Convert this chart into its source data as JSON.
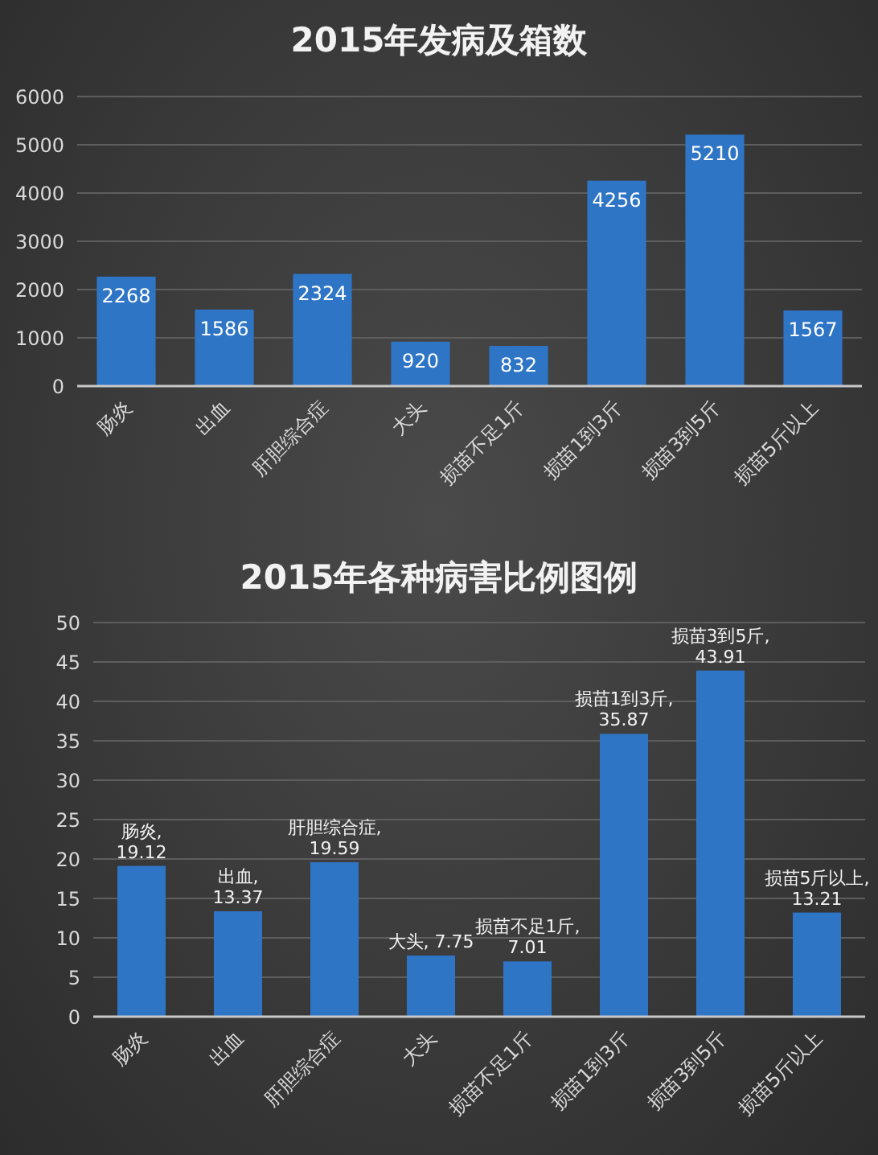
{
  "chart_data": [
    {
      "type": "bar",
      "title": "2015年发病及箱数",
      "categories": [
        "肠炎",
        "出血",
        "肝胆综合症",
        "大头",
        "损苗不足1斤",
        "损苗1到3斤",
        "损苗3到5斤",
        "损苗5斤以上"
      ],
      "values": [
        2268,
        1586,
        2324,
        920,
        832,
        4256,
        5210,
        1567
      ],
      "color": "#2e75c6",
      "ylim": [
        0,
        6000
      ],
      "yticks": [
        0,
        1000,
        2000,
        3000,
        4000,
        5000,
        6000
      ],
      "grid": "y",
      "data_labels": true
    },
    {
      "type": "bar",
      "title": "2015年各种病害比例图例",
      "categories": [
        "肠炎",
        "出血",
        "肝胆综合症",
        "大头",
        "损苗不足1斤",
        "损苗1到3斤",
        "损苗3到5斤",
        "损苗5斤以上"
      ],
      "values": [
        19.12,
        13.37,
        19.59,
        7.75,
        7.01,
        35.87,
        43.91,
        13.21
      ],
      "color": "#2e75c6",
      "ylim": [
        0,
        50
      ],
      "yticks": [
        0,
        5,
        10,
        15,
        20,
        25,
        30,
        35,
        40,
        45,
        50
      ],
      "grid": "y",
      "value_labels": [
        "肠炎, 19.12",
        "出血, 13.37",
        "肝胆综合症, 19.59",
        "大头, 7.75",
        "损苗不足1斤, 7.01",
        "损苗1到3斤, 35.87",
        "损苗3到5斤, 43.91",
        "损苗5斤以上, 13.21"
      ]
    }
  ]
}
